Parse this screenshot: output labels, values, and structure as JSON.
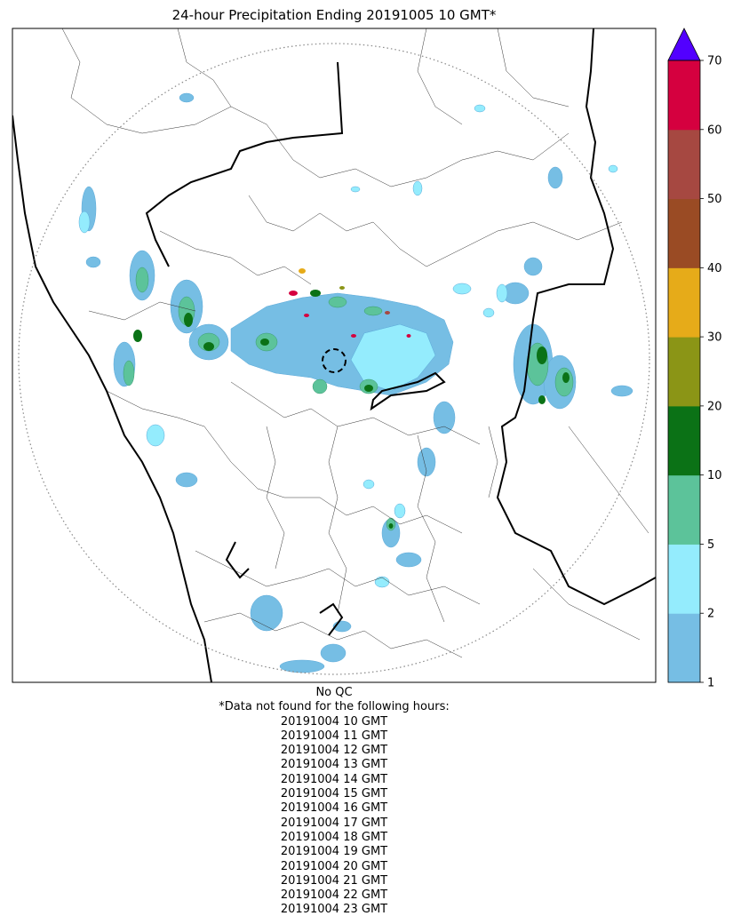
{
  "title": "24-hour Precipitation Ending 20191005 10 GMT*",
  "colorbar": {
    "bins": [
      {
        "from": 1,
        "to": 2,
        "color": "#76bee4"
      },
      {
        "from": 2,
        "to": 5,
        "color": "#94ecfd"
      },
      {
        "from": 5,
        "to": 10,
        "color": "#5cc39a"
      },
      {
        "from": 10,
        "to": 20,
        "color": "#0b7216"
      },
      {
        "from": 20,
        "to": 30,
        "color": "#8b9516"
      },
      {
        "from": 30,
        "to": 40,
        "color": "#e6ab19"
      },
      {
        "from": 40,
        "to": 50,
        "color": "#9a4b24"
      },
      {
        "from": 50,
        "to": 60,
        "color": "#a64841"
      },
      {
        "from": 60,
        "to": 70,
        "color": "#d5003f"
      }
    ],
    "over_color": "#5200ff",
    "ticks": [
      "1",
      "2",
      "5",
      "10",
      "20",
      "30",
      "40",
      "50",
      "60",
      "70"
    ]
  },
  "qc_label": "No QC",
  "missing_header": "*Data not found for the following hours:",
  "missing_hours": [
    "20191004 10 GMT",
    "20191004 11 GMT",
    "20191004 12 GMT",
    "20191004 13 GMT",
    "20191004 14 GMT",
    "20191004 15 GMT",
    "20191004 16 GMT",
    "20191004 17 GMT",
    "20191004 18 GMT",
    "20191004 19 GMT",
    "20191004 20 GMT",
    "20191004 21 GMT",
    "20191004 22 GMT",
    "20191004 23 GMT"
  ]
}
